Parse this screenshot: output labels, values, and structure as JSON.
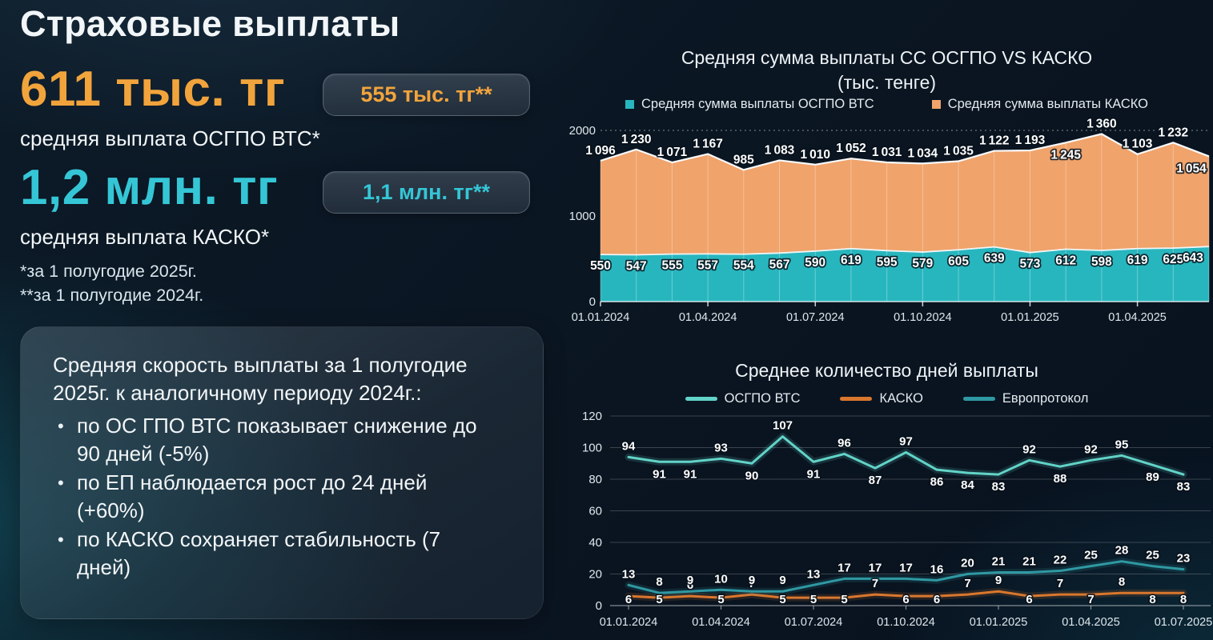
{
  "theme": {
    "accent_orange": "#F2A43C",
    "accent_teal": "#35C6D6",
    "background": "#0A1622"
  },
  "header": {
    "title": "Страховые выплаты"
  },
  "stats": {
    "osgpo": {
      "value": "611 тыс. тг",
      "badge": "555 тыс. тг**",
      "label": "средняя выплата ОСГПО ВТС*"
    },
    "kasko": {
      "value": "1,2 млн. тг",
      "badge": "1,1 млн. тг**",
      "label": "средняя выплата КАСКО*"
    }
  },
  "footnotes": [
    "*за 1 полугодие 2025г.",
    "**за 1 полугодие 2024г."
  ],
  "info_box": {
    "heading": "Средняя скорость выплаты за 1 полугодие 2025г. к аналогичному периоду 2024г.:",
    "bullets": [
      "по ОС ГПО ВТС показывает снижение до 90 дней (-5%)",
      "по ЕП наблюдается рост до 24 дней (+60%)",
      "по КАСКО сохраняет стабильность (7 дней)"
    ]
  },
  "chart_data": [
    {
      "type": "area",
      "stacked": true,
      "title": "Средняя сумма выплаты СС ОСГПО VS КАСКО",
      "subtitle": "(тыс. тенге)",
      "ylim": [
        0,
        2000
      ],
      "y_ticks": [
        0,
        1000,
        2000
      ],
      "x_tick_labels": [
        "01.01.2024",
        "01.04.2024",
        "01.07.2024",
        "01.10.2024",
        "01.01.2025",
        "01.04.2025"
      ],
      "x_tick_indices": [
        0,
        3,
        6,
        9,
        12,
        15
      ],
      "grid": "vertical lines at each point, dashed line at 2000",
      "legend_position": "top",
      "series": [
        {
          "name": "Средняя сумма выплаты ОСГПО ВТС",
          "color": "#27B6BE",
          "values": [
            550,
            547,
            555,
            557,
            554,
            567,
            590,
            619,
            595,
            579,
            605,
            639,
            573,
            612,
            598,
            619,
            625,
            643
          ]
        },
        {
          "name": "Средняя сумма выплаты КАСКО",
          "color": "#F0A36B",
          "values": [
            1096,
            1230,
            1071,
            1167,
            985,
            1083,
            1010,
            1052,
            1031,
            1034,
            1035,
            1122,
            1193,
            1245,
            1360,
            1103,
            1232,
            1054
          ]
        }
      ]
    },
    {
      "type": "line",
      "title": "Среднее количество дней выплаты",
      "ylim": [
        0,
        120
      ],
      "y_ticks": [
        0,
        20,
        40,
        60,
        80,
        100,
        120
      ],
      "x_tick_labels": [
        "01.01.2024",
        "01.04.2024",
        "01.07.2024",
        "01.10.2024",
        "01.01.2025",
        "01.04.2025",
        "01.07.2025"
      ],
      "x_tick_indices": [
        0,
        3,
        6,
        9,
        12,
        15,
        18
      ],
      "grid": "horizontal gridlines",
      "legend_position": "top",
      "series": [
        {
          "name": "ОСГПО ВТС",
          "color": "#62D3C8",
          "values": [
            94,
            91,
            91,
            93,
            90,
            107,
            91,
            96,
            87,
            97,
            86,
            84,
            83,
            92,
            88,
            92,
            95,
            89,
            83
          ]
        },
        {
          "name": "КАСКО",
          "color": "#D9772E",
          "values": [
            6,
            5,
            6,
            5,
            7,
            5,
            5,
            5,
            7,
            6,
            6,
            7,
            9,
            6,
            7,
            7,
            8,
            8,
            8
          ]
        },
        {
          "name": "Европротокол",
          "color": "#2F99A3",
          "values": [
            13,
            8,
            9,
            10,
            9,
            9,
            13,
            17,
            17,
            17,
            16,
            20,
            21,
            21,
            22,
            25,
            28,
            25,
            23
          ]
        }
      ]
    }
  ]
}
